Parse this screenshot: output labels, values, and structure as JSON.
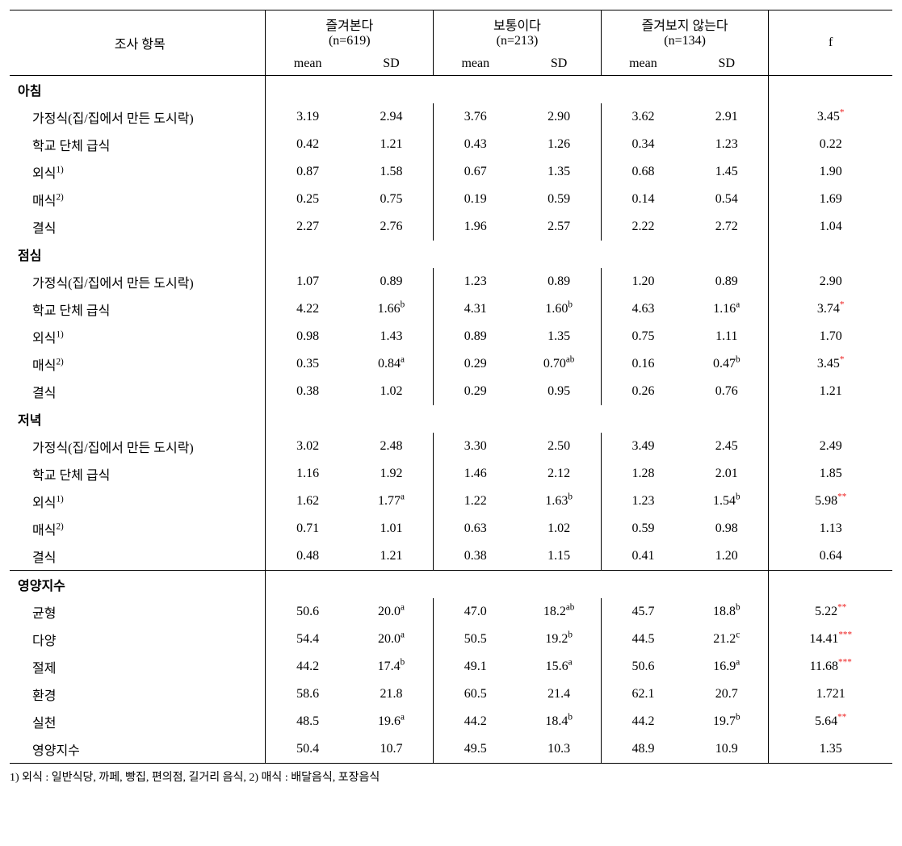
{
  "header": {
    "col_label": "조사 항목",
    "groups": [
      {
        "title": "즐겨본다",
        "n": "(n=619)"
      },
      {
        "title": "보통이다",
        "n": "(n=213)"
      },
      {
        "title": "즐겨보지 않는다",
        "n": "(n=134)"
      }
    ],
    "sub": [
      "mean",
      "SD",
      "mean",
      "SD",
      "mean",
      "SD"
    ],
    "f": "f"
  },
  "sections": [
    {
      "title": "아침",
      "rows": [
        {
          "label": "가정식(집/집에서 만든 도시락)",
          "m1": "3.19",
          "s1": "2.94",
          "m2": "3.76",
          "s2": "2.90",
          "m3": "3.62",
          "s3": "2.91",
          "f": "3.45",
          "sig": "*"
        },
        {
          "label": "학교 단체 급식",
          "m1": "0.42",
          "s1": "1.21",
          "m2": "0.43",
          "s2": "1.26",
          "m3": "0.34",
          "s3": "1.23",
          "f": "0.22"
        },
        {
          "label": "외식",
          "sup_label": "1)",
          "m1": "0.87",
          "s1": "1.58",
          "m2": "0.67",
          "s2": "1.35",
          "m3": "0.68",
          "s3": "1.45",
          "f": "1.90"
        },
        {
          "label": "매식",
          "sup_label": "2)",
          "m1": "0.25",
          "s1": "0.75",
          "m2": "0.19",
          "s2": "0.59",
          "m3": "0.14",
          "s3": "0.54",
          "f": "1.69"
        },
        {
          "label": "결식",
          "m1": "2.27",
          "s1": "2.76",
          "m2": "1.96",
          "s2": "2.57",
          "m3": "2.22",
          "s3": "2.72",
          "f": "1.04"
        }
      ]
    },
    {
      "title": "점심",
      "rows": [
        {
          "label": "가정식(집/집에서 만든 도시락)",
          "m1": "1.07",
          "s1": "0.89",
          "m2": "1.23",
          "s2": "0.89",
          "m3": "1.20",
          "s3": "0.89",
          "f": "2.90"
        },
        {
          "label": "학교 단체 급식",
          "m1": "4.22",
          "s1": "1.66",
          "s1sup": "b",
          "m2": "4.31",
          "s2": "1.60",
          "s2sup": "b",
          "m3": "4.63",
          "s3": "1.16",
          "s3sup": "a",
          "f": "3.74",
          "sig": "*"
        },
        {
          "label": "외식",
          "sup_label": "1)",
          "m1": "0.98",
          "s1": "1.43",
          "m2": "0.89",
          "s2": "1.35",
          "m3": "0.75",
          "s3": "1.11",
          "f": "1.70"
        },
        {
          "label": "매식",
          "sup_label": "2)",
          "m1": "0.35",
          "s1": "0.84",
          "s1sup": "a",
          "m2": "0.29",
          "s2": "0.70",
          "s2sup": "ab",
          "m3": "0.16",
          "s3": "0.47",
          "s3sup": "b",
          "f": "3.45",
          "sig": "*"
        },
        {
          "label": "결식",
          "m1": "0.38",
          "s1": "1.02",
          "m2": "0.29",
          "s2": "0.95",
          "m3": "0.26",
          "s3": "0.76",
          "f": "1.21"
        }
      ]
    },
    {
      "title": "저녁",
      "rows": [
        {
          "label": "가정식(집/집에서 만든 도시락)",
          "m1": "3.02",
          "s1": "2.48",
          "m2": "3.30",
          "s2": "2.50",
          "m3": "3.49",
          "s3": "2.45",
          "f": "2.49"
        },
        {
          "label": "학교 단체 급식",
          "m1": "1.16",
          "s1": "1.92",
          "m2": "1.46",
          "s2": "2.12",
          "m3": "1.28",
          "s3": "2.01",
          "f": "1.85"
        },
        {
          "label": "외식",
          "sup_label": "1)",
          "m1": "1.62",
          "s1": "1.77",
          "s1sup": "a",
          "m2": "1.22",
          "s2": "1.63",
          "s2sup": "b",
          "m3": "1.23",
          "s3": "1.54",
          "s3sup": "b",
          "f": "5.98",
          "sig": "**"
        },
        {
          "label": "매식",
          "sup_label": "2)",
          "m1": "0.71",
          "s1": "1.01",
          "m2": "0.63",
          "s2": "1.02",
          "m3": "0.59",
          "s3": "0.98",
          "f": "1.13"
        },
        {
          "label": "결식",
          "m1": "0.48",
          "s1": "1.21",
          "m2": "0.38",
          "s2": "1.15",
          "m3": "0.41",
          "s3": "1.20",
          "f": "0.64"
        }
      ]
    },
    {
      "title": "영양지수",
      "border_top": true,
      "rows": [
        {
          "label": "균형",
          "m1": "50.6",
          "s1": "20.0",
          "s1sup": "a",
          "m2": "47.0",
          "s2": "18.2",
          "s2sup": "ab",
          "m3": "45.7",
          "s3": "18.8",
          "s3sup": "b",
          "f": "5.22",
          "sig": "**"
        },
        {
          "label": "다양",
          "m1": "54.4",
          "s1": "20.0",
          "s1sup": "a",
          "m2": "50.5",
          "s2": "19.2",
          "s2sup": "b",
          "m3": "44.5",
          "s3": "21.2",
          "s3sup": "c",
          "f": "14.41",
          "sig": "***"
        },
        {
          "label": "절제",
          "m1": "44.2",
          "s1": "17.4",
          "s1sup": "b",
          "m2": "49.1",
          "s2": "15.6",
          "s2sup": "a",
          "m3": "50.6",
          "s3": "16.9",
          "s3sup": "a",
          "f": "11.68",
          "sig": "***"
        },
        {
          "label": "환경",
          "m1": "58.6",
          "s1": "21.8",
          "m2": "60.5",
          "s2": "21.4",
          "m3": "62.1",
          "s3": "20.7",
          "f": "1.721"
        },
        {
          "label": "실천",
          "m1": "48.5",
          "s1": "19.6",
          "s1sup": "a",
          "m2": "44.2",
          "s2": "18.4",
          "s2sup": "b",
          "m3": "44.2",
          "s3": "19.7",
          "s3sup": "b",
          "f": "5.64",
          "sig": "**"
        },
        {
          "label": "영양지수",
          "m1": "50.4",
          "s1": "10.7",
          "m2": "49.5",
          "s2": "10.3",
          "m3": "48.9",
          "s3": "10.9",
          "f": "1.35"
        }
      ]
    }
  ],
  "footnote": "1) 외식 : 일반식당, 까페, 빵집, 편의점, 길거리 음식, 2) 매식 : 배달음식, 포장음식"
}
